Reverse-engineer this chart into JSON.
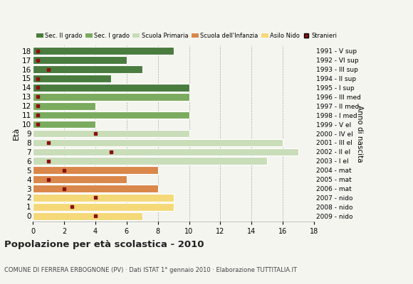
{
  "ages": [
    18,
    17,
    16,
    15,
    14,
    13,
    12,
    11,
    10,
    9,
    8,
    7,
    6,
    5,
    4,
    3,
    2,
    1,
    0
  ],
  "bar_values": [
    9,
    6,
    7,
    5,
    10,
    10,
    4,
    10,
    4,
    10,
    16,
    17,
    15,
    8,
    6,
    8,
    9,
    9,
    7
  ],
  "stranieri_x": [
    0.3,
    0.3,
    1.0,
    0.3,
    0.3,
    0.3,
    0.3,
    0.3,
    0.3,
    4.0,
    1.0,
    5.0,
    1.0,
    2.0,
    1.0,
    2.0,
    4.0,
    2.5,
    4.0
  ],
  "categories": {
    "sec2": [
      18,
      17,
      16,
      15,
      14
    ],
    "sec1": [
      13,
      12,
      11,
      10
    ],
    "primaria": [
      9,
      8,
      7,
      6
    ],
    "infanzia": [
      5,
      4,
      3
    ],
    "nido": [
      2,
      1,
      0
    ]
  },
  "colors": {
    "sec2": "#4a7c3f",
    "sec1": "#7aab5e",
    "primaria": "#c8ddb8",
    "infanzia": "#d9874a",
    "nido": "#f5d878",
    "stranieri": "#8b1010"
  },
  "right_labels": [
    "1991 - V sup",
    "1992 - VI sup",
    "1993 - III sup",
    "1994 - II sup",
    "1995 - I sup",
    "1996 - III med",
    "1997 - II med",
    "1998 - I med",
    "1999 - V el",
    "2000 - IV el",
    "2001 - III el",
    "2002 - II el",
    "2003 - I el",
    "2004 - mat",
    "2005 - mat",
    "2006 - mat",
    "2007 - nido",
    "2008 - nido",
    "2009 - nido"
  ],
  "xlim": [
    0,
    18
  ],
  "xticks": [
    0,
    2,
    4,
    6,
    8,
    10,
    12,
    14,
    16,
    18
  ],
  "title": "Popolazione per età scolastica - 2010",
  "subtitle": "COMUNE DI FERRERA ERBOGNONE (PV) · Dati ISTAT 1° gennaio 2010 · Elaborazione TUTTITALIA.IT",
  "ylabel": "Età",
  "ylabel2": "Anno di nascita",
  "legend_labels": [
    "Sec. II grado",
    "Sec. I grado",
    "Scuola Primaria",
    "Scuola dell'Infanzia",
    "Asilo Nido",
    "Stranieri"
  ],
  "background": "#f5f5f0",
  "bar_height": 0.82
}
